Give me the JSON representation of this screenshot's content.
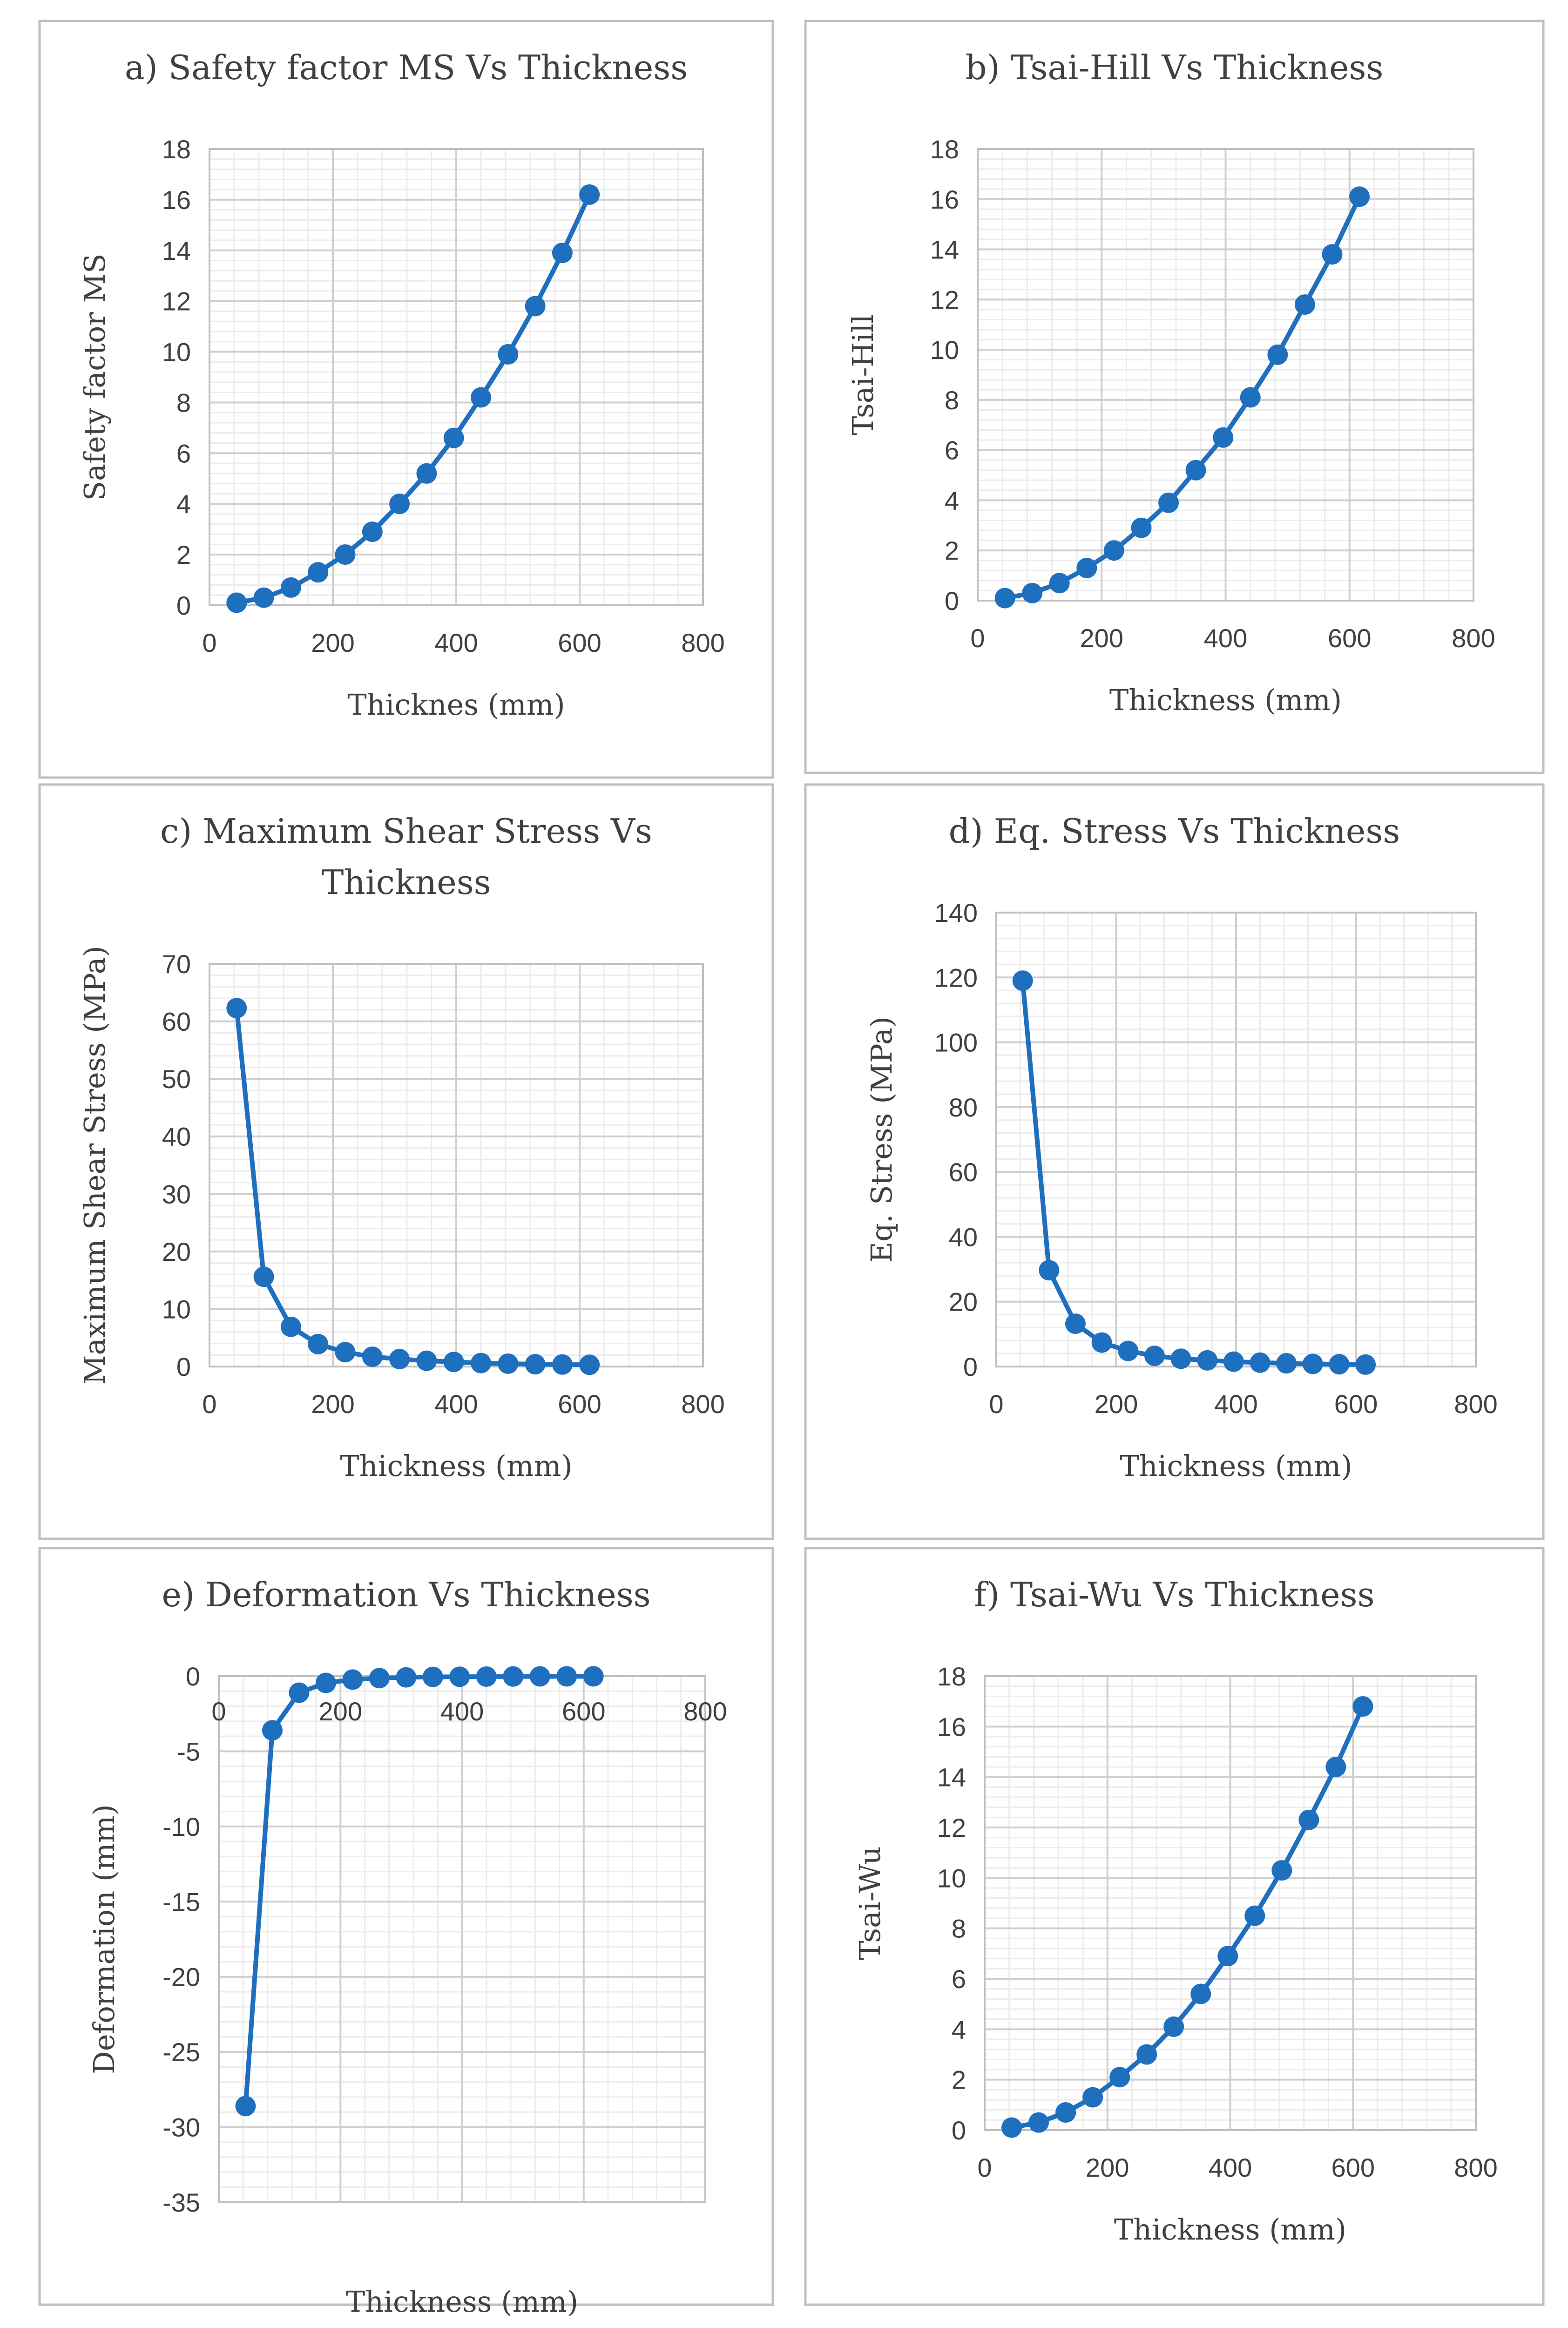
{
  "series_color": "#1f6fbf",
  "chart_data": [
    {
      "type": "line",
      "title": "a) Safety factor MS Vs Thickness",
      "xlabel": "Thicknes (mm)",
      "ylabel": "Safety factor MS",
      "xlim": [
        0,
        800
      ],
      "ylim": [
        0,
        18
      ],
      "xticks": [
        0,
        200,
        400,
        600,
        800
      ],
      "yticks": [
        0,
        2,
        4,
        6,
        8,
        10,
        12,
        14,
        16,
        18
      ],
      "x": [
        44,
        88,
        132,
        176,
        220,
        264,
        308,
        352,
        396,
        440,
        484,
        528,
        572,
        616
      ],
      "y": [
        0.1,
        0.3,
        0.7,
        1.3,
        2.0,
        2.9,
        4.0,
        5.2,
        6.6,
        8.2,
        9.9,
        11.8,
        13.9,
        16.2
      ]
    },
    {
      "type": "line",
      "title": "b) Tsai-Hill Vs Thickness",
      "xlabel": "Thickness (mm)",
      "ylabel": "Tsai-Hill",
      "xlim": [
        0,
        800
      ],
      "ylim": [
        0,
        18
      ],
      "xticks": [
        0,
        200,
        400,
        600,
        800
      ],
      "yticks": [
        0,
        2,
        4,
        6,
        8,
        10,
        12,
        14,
        16,
        18
      ],
      "x": [
        44,
        88,
        132,
        176,
        220,
        264,
        308,
        352,
        396,
        440,
        484,
        528,
        572,
        616
      ],
      "y": [
        0.1,
        0.3,
        0.7,
        1.3,
        2.0,
        2.9,
        3.9,
        5.2,
        6.5,
        8.1,
        9.8,
        11.8,
        13.8,
        16.1
      ]
    },
    {
      "type": "line",
      "title": "c) Maximum Shear Stress Vs Thickness",
      "title_lines": [
        "c) Maximum Shear Stress Vs",
        "Thickness"
      ],
      "xlabel": "Thickness (mm)",
      "ylabel": "Maximum Shear Stress (MPa)",
      "xlim": [
        0,
        800
      ],
      "ylim": [
        0,
        70
      ],
      "xticks": [
        0,
        200,
        400,
        600,
        800
      ],
      "yticks": [
        0,
        10,
        20,
        30,
        40,
        50,
        60,
        70
      ],
      "x": [
        44,
        88,
        132,
        176,
        220,
        264,
        308,
        352,
        396,
        440,
        484,
        528,
        572,
        616
      ],
      "y": [
        62.3,
        15.6,
        6.9,
        3.9,
        2.5,
        1.7,
        1.3,
        1.0,
        0.8,
        0.6,
        0.5,
        0.4,
        0.35,
        0.3
      ]
    },
    {
      "type": "line",
      "title": "d) Eq. Stress Vs Thickness",
      "xlabel": "Thickness (mm)",
      "ylabel": "Eq. Stress (MPa)",
      "xlim": [
        0,
        800
      ],
      "ylim": [
        0,
        140
      ],
      "xticks": [
        0,
        200,
        400,
        600,
        800
      ],
      "yticks": [
        0,
        20,
        40,
        60,
        80,
        100,
        120,
        140
      ],
      "x": [
        44,
        88,
        132,
        176,
        220,
        264,
        308,
        352,
        396,
        440,
        484,
        528,
        572,
        616
      ],
      "y": [
        119,
        29.7,
        13.2,
        7.4,
        4.8,
        3.3,
        2.4,
        1.9,
        1.5,
        1.2,
        1.0,
        0.8,
        0.7,
        0.6
      ]
    },
    {
      "type": "line",
      "title": "e) Deformation Vs Thickness",
      "xlabel": "Thickness (mm)",
      "ylabel": "Deformation (mm)",
      "xlim": [
        0,
        800
      ],
      "ylim": [
        -35,
        0
      ],
      "x_axis_at_top": true,
      "xticks": [
        0,
        200,
        400,
        600,
        800
      ],
      "yticks": [
        0,
        -5,
        -10,
        -15,
        -20,
        -25,
        -30,
        -35
      ],
      "x": [
        44,
        88,
        132,
        176,
        220,
        264,
        308,
        352,
        396,
        440,
        484,
        528,
        572,
        616
      ],
      "y": [
        -28.6,
        -3.6,
        -1.1,
        -0.45,
        -0.23,
        -0.13,
        -0.08,
        -0.05,
        -0.04,
        -0.03,
        -0.02,
        -0.015,
        -0.01,
        -0.01
      ]
    },
    {
      "type": "line",
      "title": "f) Tsai-Wu Vs Thickness",
      "xlabel": "Thickness (mm)",
      "ylabel": "Tsai-Wu",
      "xlim": [
        0,
        800
      ],
      "ylim": [
        0,
        18
      ],
      "xticks": [
        0,
        200,
        400,
        600,
        800
      ],
      "yticks": [
        0,
        2,
        4,
        6,
        8,
        10,
        12,
        14,
        16,
        18
      ],
      "x": [
        44,
        88,
        132,
        176,
        220,
        264,
        308,
        352,
        396,
        440,
        484,
        528,
        572,
        616
      ],
      "y": [
        0.1,
        0.3,
        0.7,
        1.3,
        2.1,
        3.0,
        4.1,
        5.4,
        6.9,
        8.5,
        10.3,
        12.3,
        14.4,
        16.8
      ]
    }
  ]
}
